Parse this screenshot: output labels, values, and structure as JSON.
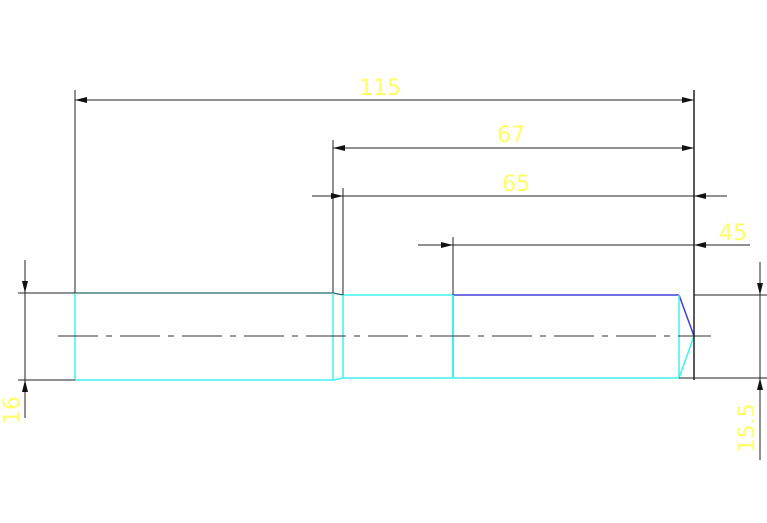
{
  "drawing": {
    "dimensions": {
      "overall_length": "115",
      "step_length": "67",
      "shoulder_length": "65",
      "end_length": "45",
      "left_diameter": "16",
      "right_diameter": "15.5"
    },
    "colors": {
      "outline": "#40f0f0",
      "edge": "#4040d8",
      "dimension_line": "#222222",
      "dimension_text": "#ffff66"
    }
  }
}
